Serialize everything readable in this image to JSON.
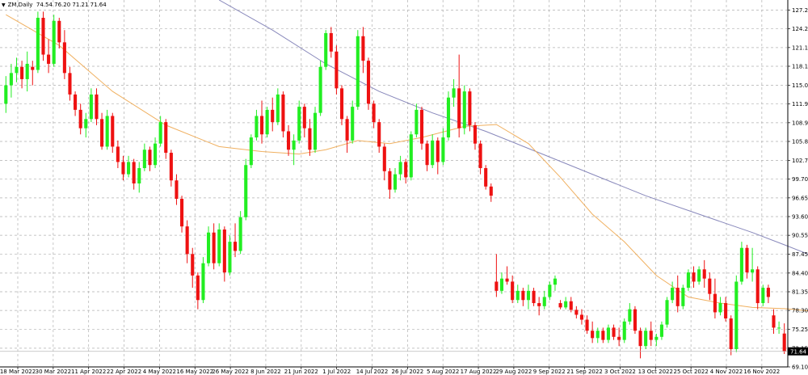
{
  "header": {
    "symbol": "ZM,Daily",
    "ohlc": "74.54 76.20 71.21 71.64"
  },
  "chart_data": {
    "type": "candlestick",
    "symbol": "ZM",
    "timeframe": "Daily",
    "ylim": [
      69.1,
      128.9
    ],
    "y_ticks": [
      69.1,
      72.15,
      75.25,
      78.3,
      81.35,
      84.4,
      87.45,
      90.55,
      93.6,
      96.65,
      99.7,
      102.75,
      105.85,
      108.9,
      111.95,
      115.0,
      118.1,
      121.15,
      124.2,
      127.25
    ],
    "x_labels": [
      "18 Mar 2022",
      "30 Mar 2022",
      "11 Apr 2022",
      "22 Apr 2022",
      "4 May 2022",
      "16 May 2022",
      "26 May 2022",
      "8 Jun 2022",
      "21 Jun 2022",
      "1 Jul 2022",
      "14 Jul 2022",
      "26 Jul 2022",
      "5 Aug 2022",
      "17 Aug 2022",
      "29 Aug 2022",
      "9 Sep 2022",
      "21 Sep 2022",
      "3 Oct 2022",
      "13 Oct 2022",
      "25 Oct 2022",
      "4 Nov 2022",
      "16 Nov 2022"
    ],
    "last_price": "71.64",
    "colors": {
      "bull": "#22ee22",
      "bear": "#ee1111",
      "ma_fast": "#f0b060",
      "ma_slow": "#8888bb",
      "grid": "#b0b0b0"
    },
    "candles": [
      [
        112.0,
        116.5,
        110.5,
        115.0
      ],
      [
        115.0,
        118.5,
        113.0,
        117.0
      ],
      [
        117.0,
        119.5,
        115.5,
        118.0
      ],
      [
        118.0,
        119.0,
        114.5,
        116.0
      ],
      [
        116.0,
        120.5,
        114.0,
        118.5
      ],
      [
        118.0,
        119.0,
        115.0,
        117.5
      ],
      [
        117.5,
        127.0,
        117.0,
        126.0
      ],
      [
        126.0,
        127.0,
        119.0,
        120.0
      ],
      [
        120.0,
        122.5,
        117.0,
        118.5
      ],
      [
        118.5,
        126.5,
        118.0,
        125.5
      ],
      [
        125.5,
        126.0,
        121.0,
        122.0
      ],
      [
        122.0,
        124.0,
        116.0,
        117.0
      ],
      [
        117.0,
        118.0,
        112.5,
        113.5
      ],
      [
        113.5,
        114.0,
        110.0,
        111.0
      ],
      [
        111.0,
        112.0,
        107.0,
        108.0
      ],
      [
        108.0,
        110.5,
        106.5,
        109.5
      ],
      [
        109.5,
        114.5,
        109.0,
        113.5
      ],
      [
        113.5,
        114.5,
        108.5,
        109.5
      ],
      [
        109.5,
        110.5,
        104.5,
        105.0
      ],
      [
        105.0,
        111.0,
        104.5,
        110.0
      ],
      [
        110.0,
        110.5,
        104.0,
        105.0
      ],
      [
        105.0,
        106.0,
        101.5,
        102.5
      ],
      [
        102.5,
        103.5,
        99.5,
        100.5
      ],
      [
        100.5,
        103.5,
        100.0,
        102.5
      ],
      [
        102.5,
        103.0,
        98.0,
        99.0
      ],
      [
        99.0,
        102.5,
        97.5,
        101.5
      ],
      [
        101.5,
        105.5,
        101.0,
        104.5
      ],
      [
        104.5,
        105.0,
        101.0,
        102.0
      ],
      [
        102.0,
        106.5,
        101.5,
        105.5
      ],
      [
        105.5,
        110.0,
        105.0,
        109.0
      ],
      [
        109.0,
        109.5,
        103.0,
        104.0
      ],
      [
        104.0,
        104.5,
        98.5,
        99.5
      ],
      [
        99.5,
        100.5,
        95.5,
        96.5
      ],
      [
        96.5,
        97.0,
        91.0,
        92.0
      ],
      [
        92.0,
        93.0,
        86.0,
        87.5
      ],
      [
        87.5,
        88.5,
        82.0,
        84.0
      ],
      [
        84.0,
        84.5,
        78.5,
        80.0
      ],
      [
        80.0,
        87.0,
        79.5,
        86.0
      ],
      [
        86.0,
        92.0,
        85.5,
        91.0
      ],
      [
        91.0,
        92.5,
        85.0,
        86.0
      ],
      [
        86.0,
        92.5,
        85.5,
        91.5
      ],
      [
        91.5,
        92.0,
        83.0,
        84.5
      ],
      [
        84.5,
        90.5,
        84.0,
        89.5
      ],
      [
        89.5,
        92.5,
        87.0,
        88.0
      ],
      [
        88.0,
        94.5,
        87.5,
        93.5
      ],
      [
        93.5,
        103.0,
        93.0,
        102.0
      ],
      [
        102.0,
        107.0,
        101.5,
        106.5
      ],
      [
        106.5,
        111.0,
        106.0,
        110.0
      ],
      [
        110.0,
        112.5,
        105.5,
        107.0
      ],
      [
        107.0,
        111.5,
        106.5,
        111.0
      ],
      [
        111.0,
        113.0,
        107.5,
        109.0
      ],
      [
        109.0,
        114.5,
        108.5,
        113.5
      ],
      [
        113.5,
        114.0,
        106.5,
        107.5
      ],
      [
        107.5,
        108.5,
        103.5,
        104.5
      ],
      [
        104.5,
        107.0,
        102.0,
        106.0
      ],
      [
        106.0,
        112.5,
        105.5,
        111.5
      ],
      [
        111.5,
        112.0,
        106.5,
        108.0
      ],
      [
        108.0,
        109.5,
        103.5,
        104.5
      ],
      [
        104.5,
        111.5,
        104.0,
        110.5
      ],
      [
        110.5,
        119.0,
        110.0,
        118.0
      ],
      [
        118.0,
        124.0,
        117.5,
        123.5
      ],
      [
        123.5,
        124.5,
        119.5,
        120.5
      ],
      [
        120.5,
        121.5,
        113.5,
        114.5
      ],
      [
        114.5,
        115.0,
        108.5,
        109.5
      ],
      [
        109.5,
        110.0,
        104.0,
        106.0
      ],
      [
        106.0,
        112.5,
        105.5,
        111.5
      ],
      [
        111.5,
        124.0,
        111.0,
        123.0
      ],
      [
        123.0,
        124.5,
        117.0,
        119.0
      ],
      [
        119.0,
        119.5,
        111.0,
        112.0
      ],
      [
        112.0,
        112.5,
        108.0,
        109.0
      ],
      [
        109.0,
        109.5,
        104.0,
        105.0
      ],
      [
        105.0,
        105.5,
        99.5,
        101.0
      ],
      [
        101.0,
        101.5,
        96.5,
        98.0
      ],
      [
        98.0,
        101.5,
        97.5,
        100.5
      ],
      [
        100.5,
        103.5,
        99.5,
        102.5
      ],
      [
        102.5,
        103.0,
        99.0,
        100.0
      ],
      [
        100.0,
        107.5,
        99.5,
        107.0
      ],
      [
        107.0,
        112.0,
        106.5,
        111.0
      ],
      [
        111.0,
        111.5,
        104.5,
        105.5
      ],
      [
        105.5,
        106.0,
        101.0,
        102.0
      ],
      [
        102.0,
        107.0,
        101.5,
        106.0
      ],
      [
        106.0,
        106.5,
        100.5,
        102.5
      ],
      [
        102.5,
        108.0,
        102.0,
        106.5
      ],
      [
        106.5,
        114.0,
        106.0,
        113.0
      ],
      [
        113.0,
        116.0,
        111.5,
        114.5
      ],
      [
        114.5,
        120.0,
        106.5,
        108.0
      ],
      [
        108.0,
        115.0,
        107.0,
        114.0
      ],
      [
        114.0,
        114.5,
        107.5,
        108.5
      ],
      [
        108.5,
        109.0,
        104.5,
        105.5
      ],
      [
        105.5,
        106.0,
        100.5,
        101.5
      ],
      [
        101.5,
        102.0,
        98.0,
        98.5
      ],
      [
        98.5,
        99.0,
        96.0,
        97.0
      ],
      [
        83.0,
        87.5,
        80.5,
        81.5
      ],
      [
        81.5,
        84.5,
        81.0,
        83.5
      ],
      [
        83.5,
        85.5,
        82.5,
        83.0
      ],
      [
        83.0,
        84.0,
        79.5,
        80.0
      ],
      [
        80.0,
        82.5,
        79.5,
        81.5
      ],
      [
        81.5,
        82.0,
        79.0,
        80.0
      ],
      [
        80.0,
        82.5,
        78.5,
        81.5
      ],
      [
        81.5,
        82.0,
        79.0,
        79.5
      ],
      [
        79.5,
        80.5,
        77.5,
        79.0
      ],
      [
        79.0,
        81.5,
        78.5,
        80.5
      ],
      [
        80.5,
        83.0,
        80.0,
        82.5
      ],
      [
        82.5,
        84.0,
        81.5,
        83.5
      ],
      [
        79.5,
        80.0,
        78.5,
        78.8
      ],
      [
        78.8,
        80.5,
        78.5,
        79.8
      ],
      [
        79.8,
        80.5,
        78.0,
        78.4
      ],
      [
        78.4,
        79.0,
        77.0,
        77.6
      ],
      [
        77.6,
        78.5,
        76.0,
        76.8
      ],
      [
        76.8,
        77.5,
        74.5,
        75.0
      ],
      [
        75.0,
        76.5,
        73.0,
        73.8
      ],
      [
        73.8,
        75.5,
        73.0,
        75.0
      ],
      [
        75.0,
        75.5,
        73.0,
        73.5
      ],
      [
        73.5,
        76.0,
        73.0,
        75.5
      ],
      [
        75.5,
        76.0,
        73.5,
        74.0
      ],
      [
        74.0,
        75.5,
        72.5,
        73.5
      ],
      [
        73.5,
        77.0,
        73.0,
        76.5
      ],
      [
        76.5,
        79.5,
        76.0,
        78.5
      ],
      [
        78.5,
        79.0,
        74.5,
        75.0
      ],
      [
        75.0,
        75.5,
        70.5,
        72.5
      ],
      [
        72.5,
        75.5,
        72.0,
        75.0
      ],
      [
        75.0,
        76.5,
        72.5,
        73.5
      ],
      [
        73.5,
        74.5,
        72.5,
        74.0
      ],
      [
        74.0,
        76.5,
        73.5,
        76.0
      ],
      [
        76.0,
        80.5,
        75.5,
        80.0
      ],
      [
        80.0,
        83.0,
        79.5,
        82.0
      ],
      [
        82.0,
        84.0,
        78.0,
        79.0
      ],
      [
        79.0,
        82.5,
        78.5,
        82.0
      ],
      [
        82.0,
        85.0,
        81.5,
        84.5
      ],
      [
        84.5,
        85.5,
        82.0,
        83.0
      ],
      [
        83.0,
        85.5,
        82.5,
        85.0
      ],
      [
        85.0,
        86.5,
        82.0,
        83.5
      ],
      [
        83.5,
        84.5,
        80.0,
        81.0
      ],
      [
        81.0,
        83.5,
        77.0,
        78.0
      ],
      [
        78.0,
        80.5,
        77.5,
        79.5
      ],
      [
        79.5,
        80.5,
        76.5,
        77.0
      ],
      [
        77.0,
        77.5,
        71.0,
        72.0
      ],
      [
        72.0,
        84.0,
        71.5,
        83.0
      ],
      [
        83.0,
        89.5,
        82.5,
        88.5
      ],
      [
        88.5,
        89.0,
        83.5,
        84.5
      ],
      [
        84.5,
        88.5,
        83.0,
        85.0
      ],
      [
        85.0,
        85.5,
        78.5,
        79.5
      ],
      [
        79.5,
        82.5,
        79.0,
        82.0
      ],
      [
        82.0,
        82.5,
        79.5,
        80.5
      ],
      [
        77.5,
        78.5,
        74.5,
        75.5
      ],
      [
        75.5,
        76.5,
        74.5,
        75.5
      ],
      [
        74.54,
        76.2,
        71.21,
        71.64
      ]
    ],
    "ma_fast": [
      [
        0,
        126.5
      ],
      [
        10,
        121.5
      ],
      [
        20,
        114.0
      ],
      [
        30,
        108.5
      ],
      [
        40,
        105.0
      ],
      [
        48,
        104.2
      ],
      [
        55,
        103.8
      ],
      [
        60,
        104.5
      ],
      [
        66,
        106.0
      ],
      [
        72,
        105.5
      ],
      [
        78,
        106.5
      ],
      [
        86,
        108.3
      ],
      [
        92,
        108.6
      ],
      [
        98,
        105.5
      ],
      [
        104,
        100.0
      ],
      [
        110,
        94.0
      ],
      [
        116,
        89.5
      ],
      [
        122,
        84.0
      ],
      [
        128,
        80.5
      ],
      [
        134,
        79.5
      ],
      [
        140,
        78.8
      ],
      [
        146,
        78.6
      ],
      [
        151,
        78.2
      ]
    ],
    "ma_slow": [
      [
        40,
        128.9
      ],
      [
        50,
        124.0
      ],
      [
        60,
        118.5
      ],
      [
        70,
        114.0
      ],
      [
        80,
        110.5
      ],
      [
        90,
        107.5
      ],
      [
        100,
        104.0
      ],
      [
        110,
        100.5
      ],
      [
        120,
        97.0
      ],
      [
        130,
        94.0
      ],
      [
        140,
        91.0
      ],
      [
        146,
        89.0
      ],
      [
        151,
        87.3
      ]
    ]
  }
}
